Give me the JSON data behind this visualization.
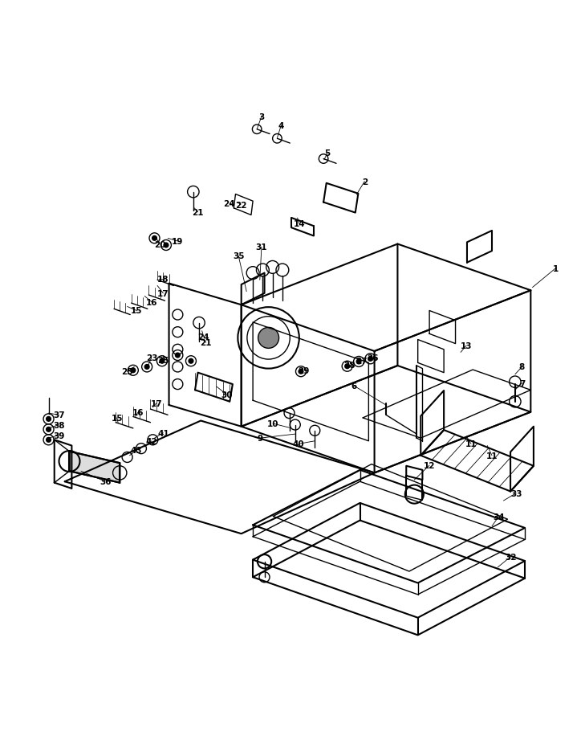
{
  "bg_color": "#ffffff",
  "line_color": "#000000",
  "fig_width": 7.24,
  "fig_height": 9.12,
  "dpi": 100
}
